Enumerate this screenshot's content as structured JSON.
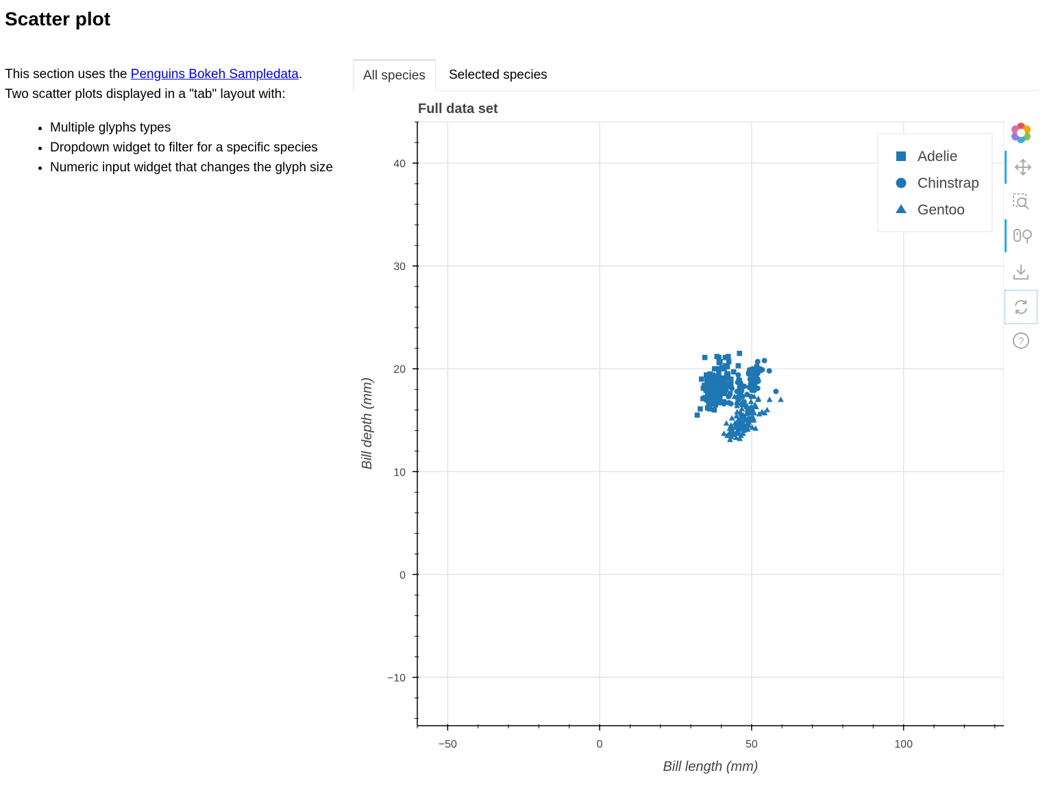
{
  "page": {
    "title": "Scatter plot",
    "intro_prefix": "This section uses the ",
    "intro_link": "Penguins Bokeh Sampledata",
    "intro_suffix": ".",
    "intro_line2": "Two scatter plots displayed in a \"tab\" layout with:",
    "bullets": [
      "Multiple glyphs types",
      "Dropdown widget to filter for a specific species",
      "Numeric input widget that changes the glyph size"
    ]
  },
  "tabs": [
    {
      "label": "All species",
      "active": true
    },
    {
      "label": "Selected species",
      "active": false
    }
  ],
  "toolbar": {
    "tools": [
      "bokeh-logo-icon",
      "pan-icon",
      "box-zoom-icon",
      "wheel-zoom-icon",
      "save-icon",
      "reset-icon",
      "help-icon"
    ]
  },
  "chart_data": {
    "type": "scatter",
    "title": "Full data set",
    "xlabel": "Bill length (mm)",
    "ylabel": "Bill depth (mm)",
    "xlim": [
      -60,
      133
    ],
    "ylim": [
      -14.7,
      44
    ],
    "xticks": [
      -50,
      0,
      50,
      100
    ],
    "yticks": [
      -10,
      0,
      10,
      20,
      30,
      40
    ],
    "xtick_labels": [
      "−50",
      "0",
      "50",
      "100"
    ],
    "ytick_labels": [
      "−10",
      "0",
      "10",
      "20",
      "30",
      "40"
    ],
    "grid": true,
    "legend_position": "top-right",
    "color": "#1f77b4",
    "series": [
      {
        "name": "Adelie",
        "marker": "square",
        "x": [
          39.1,
          39.5,
          40.3,
          36.7,
          39.3,
          38.9,
          39.2,
          34.1,
          42.0,
          37.8,
          37.8,
          41.1,
          38.6,
          34.6,
          36.6,
          38.7,
          42.5,
          34.4,
          46.0,
          37.8,
          37.7,
          35.9,
          38.2,
          38.8,
          35.3,
          40.6,
          40.5,
          37.9,
          40.5,
          39.5,
          37.2,
          39.5,
          40.9,
          36.4,
          39.2,
          38.8,
          42.2,
          37.6,
          39.8,
          36.5,
          40.8,
          36.0,
          44.1,
          37.0,
          39.6,
          41.1,
          37.5,
          36.0,
          42.3,
          39.6,
          40.1,
          35.0,
          42.0,
          34.5,
          41.4,
          39.0,
          40.6,
          36.5,
          37.6,
          35.7,
          41.3,
          37.6,
          41.1,
          36.4,
          41.6,
          35.5,
          41.1,
          35.9,
          41.8,
          33.5,
          39.7,
          39.6,
          45.8,
          35.5,
          42.8,
          40.9,
          37.2,
          36.2,
          42.1,
          34.6,
          42.9,
          36.7,
          35.1,
          37.3,
          41.3,
          36.3,
          36.9,
          38.3,
          38.9,
          35.7,
          41.1,
          34.0,
          39.6,
          36.2,
          40.8,
          38.1,
          40.3,
          33.1,
          43.2,
          35.0,
          41.0,
          37.7,
          37.8,
          37.9,
          39.7,
          38.6,
          38.2,
          38.1,
          43.2,
          38.1,
          45.6,
          39.7,
          42.2,
          39.6,
          42.7,
          32.1,
          35.2,
          46.1,
          36.4,
          40.2
        ],
        "y": [
          18.7,
          17.4,
          18.0,
          19.3,
          20.6,
          17.8,
          19.6,
          18.1,
          20.2,
          17.1,
          17.3,
          17.6,
          21.2,
          21.1,
          17.8,
          19.0,
          20.7,
          18.4,
          21.5,
          18.3,
          18.7,
          19.2,
          18.1,
          17.2,
          18.9,
          18.6,
          17.9,
          18.6,
          18.9,
          16.7,
          18.1,
          17.8,
          18.9,
          17.0,
          21.1,
          20.0,
          18.5,
          19.3,
          19.1,
          18.0,
          18.4,
          18.5,
          19.7,
          16.9,
          18.8,
          19.0,
          18.9,
          17.9,
          21.2,
          17.7,
          18.9,
          17.9,
          19.5,
          18.1,
          18.6,
          17.5,
          18.8,
          16.6,
          19.1,
          16.9,
          21.1,
          17.0,
          18.2,
          17.1,
          18.0,
          16.2,
          19.1,
          16.6,
          19.4,
          19.0,
          18.4,
          17.2,
          18.9,
          17.5,
          18.5,
          16.8,
          19.4,
          16.1,
          19.1,
          17.2,
          17.6,
          18.8,
          19.4,
          17.8,
          20.3,
          19.5,
          18.6,
          19.2,
          18.8,
          18.0,
          18.1,
          17.1,
          18.1,
          17.3,
          18.9,
          18.6,
          18.5,
          16.1,
          18.5,
          17.9,
          20.0,
          16.0,
          20.0,
          18.6,
          18.9,
          17.2,
          20.0,
          17.0,
          19.0,
          16.5,
          20.3,
          17.7,
          19.5,
          20.7,
          18.3,
          15.5,
          17.0,
          18.2,
          17.0,
          20.1
        ]
      },
      {
        "name": "Chinstrap",
        "marker": "circle",
        "x": [
          46.5,
          50.0,
          51.3,
          45.4,
          52.7,
          45.2,
          46.1,
          51.3,
          46.0,
          51.3,
          46.6,
          51.7,
          47.0,
          52.0,
          45.9,
          50.5,
          50.3,
          58.0,
          46.4,
          49.2,
          42.4,
          48.5,
          43.2,
          50.6,
          46.7,
          52.0,
          50.5,
          49.5,
          46.4,
          52.8,
          40.9,
          54.2,
          42.5,
          51.0,
          49.7,
          47.5,
          47.6,
          52.0,
          46.9,
          53.5,
          49.0,
          46.2,
          50.9,
          45.5,
          50.9,
          50.8,
          50.1,
          49.0,
          51.5,
          49.8,
          48.1,
          51.4,
          45.7,
          50.7,
          42.5,
          52.2,
          45.2,
          49.3,
          50.2,
          45.6,
          51.9,
          46.8,
          45.7,
          55.8,
          43.5,
          49.6,
          50.8,
          50.2
        ],
        "y": [
          17.9,
          19.5,
          19.2,
          18.7,
          19.8,
          17.8,
          18.2,
          18.2,
          18.9,
          19.9,
          17.8,
          20.3,
          17.3,
          18.1,
          17.1,
          19.6,
          20.0,
          17.8,
          18.6,
          18.2,
          17.3,
          17.5,
          16.6,
          19.4,
          17.9,
          19.0,
          18.4,
          19.0,
          17.8,
          20.0,
          16.6,
          20.8,
          16.7,
          18.8,
          18.6,
          16.8,
          18.3,
          20.7,
          16.6,
          19.9,
          19.5,
          17.5,
          19.1,
          17.0,
          17.9,
          18.5,
          17.9,
          19.6,
          18.7,
          17.3,
          16.4,
          19.0,
          17.3,
          19.7,
          17.3,
          18.8,
          16.6,
          19.9,
          18.8,
          19.4,
          19.5,
          16.5,
          17.0,
          19.8,
          18.1,
          18.2,
          19.0,
          18.7
        ]
      },
      {
        "name": "Gentoo",
        "marker": "triangle",
        "x": [
          46.1,
          50.0,
          48.7,
          50.0,
          47.6,
          46.5,
          45.4,
          46.7,
          43.3,
          46.8,
          40.9,
          49.0,
          45.5,
          48.4,
          45.8,
          49.3,
          42.0,
          49.2,
          46.2,
          48.7,
          50.2,
          45.1,
          46.5,
          46.3,
          42.9,
          46.1,
          44.5,
          47.8,
          48.2,
          50.0,
          47.3,
          42.8,
          45.1,
          59.6,
          49.1,
          48.4,
          42.6,
          44.4,
          44.0,
          48.7,
          42.7,
          49.6,
          45.3,
          49.6,
          50.5,
          43.6,
          45.5,
          50.5,
          44.9,
          45.2,
          46.6,
          48.5,
          45.1,
          50.1,
          46.5,
          45.0,
          43.8,
          45.5,
          43.2,
          50.4,
          45.3,
          46.2,
          45.7,
          54.3,
          45.8,
          49.8,
          46.2,
          49.5,
          43.5,
          50.7,
          47.7,
          46.4,
          48.2,
          46.5,
          46.4,
          48.6,
          47.5,
          51.1,
          45.2,
          45.2,
          49.1,
          52.5,
          47.4,
          50.0,
          44.9,
          50.8,
          43.4,
          51.3,
          47.5,
          52.1,
          47.5,
          52.2,
          45.5,
          49.5,
          44.5,
          50.8,
          49.4,
          46.9,
          48.4,
          51.1,
          48.5,
          55.9,
          47.2,
          49.1,
          46.8,
          41.7,
          53.4,
          43.3,
          48.1,
          50.5,
          49.8,
          43.5,
          51.5,
          46.2,
          55.1,
          48.8,
          47.2,
          46.8,
          50.4,
          45.2,
          49.9
        ],
        "y": [
          13.2,
          16.3,
          14.1,
          15.2,
          14.5,
          13.5,
          14.6,
          15.3,
          13.4,
          15.4,
          13.7,
          16.1,
          13.7,
          14.6,
          14.6,
          15.7,
          13.5,
          15.2,
          14.5,
          15.1,
          14.3,
          14.5,
          14.5,
          15.8,
          13.1,
          15.1,
          14.3,
          15.0,
          14.3,
          15.3,
          15.3,
          14.2,
          14.5,
          17.0,
          14.8,
          16.3,
          13.7,
          17.3,
          13.6,
          15.7,
          13.7,
          16.0,
          13.7,
          15.0,
          15.9,
          13.9,
          13.9,
          15.9,
          13.3,
          15.8,
          14.2,
          14.1,
          14.4,
          15.0,
          14.4,
          15.4,
          13.9,
          15.0,
          14.5,
          15.3,
          13.8,
          14.9,
          13.9,
          15.7,
          14.2,
          16.8,
          14.4,
          16.2,
          14.2,
          15.0,
          15.0,
          15.6,
          15.6,
          14.8,
          15.0,
          16.0,
          14.2,
          16.3,
          13.8,
          16.4,
          14.5,
          15.6,
          14.6,
          15.9,
          13.8,
          17.3,
          14.4,
          14.2,
          14.0,
          17.0,
          15.0,
          17.1,
          14.5,
          16.1,
          14.7,
          15.7,
          15.8,
          14.6,
          14.4,
          16.5,
          15.0,
          17.0,
          15.5,
          15.0,
          16.1,
          14.7,
          15.8,
          14.0,
          15.1,
          15.2,
          15.9,
          15.2,
          16.3,
          14.1,
          16.0,
          16.2,
          13.7,
          14.3,
          15.7,
          14.8,
          16.1
        ]
      }
    ]
  }
}
